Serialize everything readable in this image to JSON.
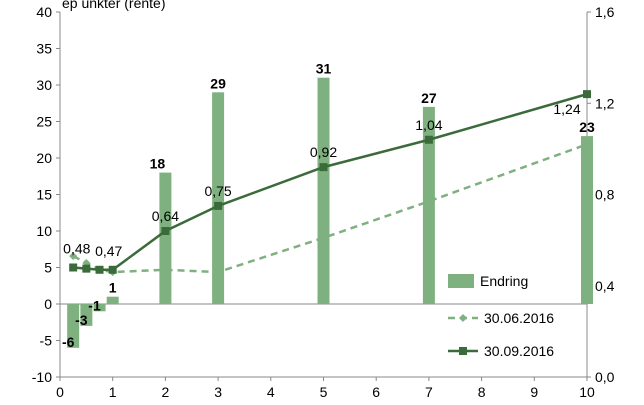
{
  "chart_data": {
    "type": "bar+line",
    "title_fragment": "ep unkter (rente)",
    "x_ticks": [
      "0",
      "1",
      "2",
      "3",
      "4",
      "5",
      "6",
      "7",
      "8",
      "9",
      "10"
    ],
    "x_range": [
      0,
      10
    ],
    "y_left_ticks": [
      "-10",
      "-5",
      "0",
      "5",
      "10",
      "15",
      "20",
      "25",
      "30",
      "35",
      "40"
    ],
    "y_left_range": [
      -10,
      40
    ],
    "y_right_ticks": [
      "0,0",
      "0,4",
      "0,8",
      "1,2",
      "1,6"
    ],
    "y_right_range": [
      0,
      1.6
    ],
    "colors": {
      "bars": "#7fb07f",
      "line_2016q2": "#7fb07f",
      "line_2016q3": "#3b6b3b"
    },
    "bar_series": {
      "name": "Endring",
      "points": [
        {
          "x": 0.25,
          "value": -6,
          "label": "-6"
        },
        {
          "x": 0.5,
          "value": -3,
          "label": "-3"
        },
        {
          "x": 0.75,
          "value": -1,
          "label": "-1"
        },
        {
          "x": 1,
          "value": 1,
          "label": "1"
        },
        {
          "x": 2,
          "value": 18,
          "label": "18"
        },
        {
          "x": 3,
          "value": 29,
          "label": "29"
        },
        {
          "x": 5,
          "value": 31,
          "label": "31"
        },
        {
          "x": 7,
          "value": 27,
          "label": "27"
        },
        {
          "x": 10,
          "value": 23,
          "label": "23"
        }
      ]
    },
    "line_series": [
      {
        "name": "30.06.2016",
        "style": "dashed",
        "points": [
          {
            "x": 0.25,
            "y": 0.53
          },
          {
            "x": 0.5,
            "y": 0.5
          },
          {
            "x": 0.75,
            "y": 0.47
          },
          {
            "x": 1,
            "y": 0.46
          },
          {
            "x": 2,
            "y": 0.47
          },
          {
            "x": 3,
            "y": 0.46
          },
          {
            "x": 5,
            "y": 0.61
          },
          {
            "x": 7,
            "y": 0.77
          },
          {
            "x": 10,
            "y": 1.02
          }
        ]
      },
      {
        "name": "30.09.2016",
        "style": "solid",
        "points": [
          {
            "x": 0.25,
            "y": 0.48,
            "label": "0,48"
          },
          {
            "x": 0.5,
            "y": 0.475
          },
          {
            "x": 0.75,
            "y": 0.47
          },
          {
            "x": 1,
            "y": 0.47,
            "label": "0,47"
          },
          {
            "x": 2,
            "y": 0.64,
            "label": "0,64"
          },
          {
            "x": 3,
            "y": 0.75,
            "label": "0,75"
          },
          {
            "x": 5,
            "y": 0.92,
            "label": "0,92"
          },
          {
            "x": 7,
            "y": 1.04,
            "label": "1,04"
          },
          {
            "x": 10,
            "y": 1.24,
            "label": "1,24"
          }
        ]
      }
    ],
    "legend": {
      "placement": "bottom-right",
      "entries": [
        "Endring",
        "30.06.2016",
        "30.09.2016"
      ]
    },
    "grid": false
  }
}
